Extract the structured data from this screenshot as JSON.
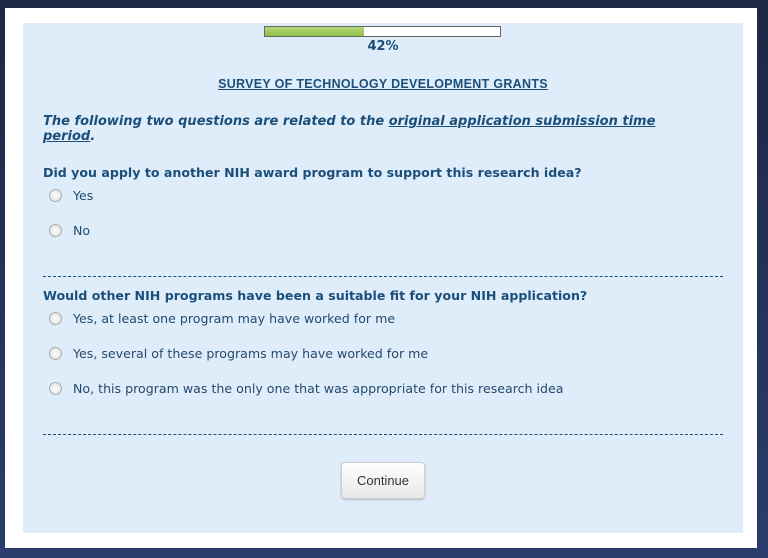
{
  "progress": {
    "value": 42,
    "label": "42%",
    "fill_color": "#9cc85a"
  },
  "title": "SURVEY OF TECHNOLOGY DEVELOPMENT GRANTS",
  "intro": {
    "before": "The following two questions are related to the ",
    "link": "original application submission time period",
    "after": "."
  },
  "questions": [
    {
      "text": "Did you apply to another NIH award program to support this research idea?",
      "options": [
        "Yes",
        "No"
      ]
    },
    {
      "text": "Would other NIH programs have been a suitable fit for your NIH application?",
      "options": [
        "Yes, at least one program may have worked for me",
        "Yes, several of these programs may have worked for me",
        "No, this program was the only one that was appropriate for this research idea"
      ]
    }
  ],
  "continue_label": "Continue"
}
